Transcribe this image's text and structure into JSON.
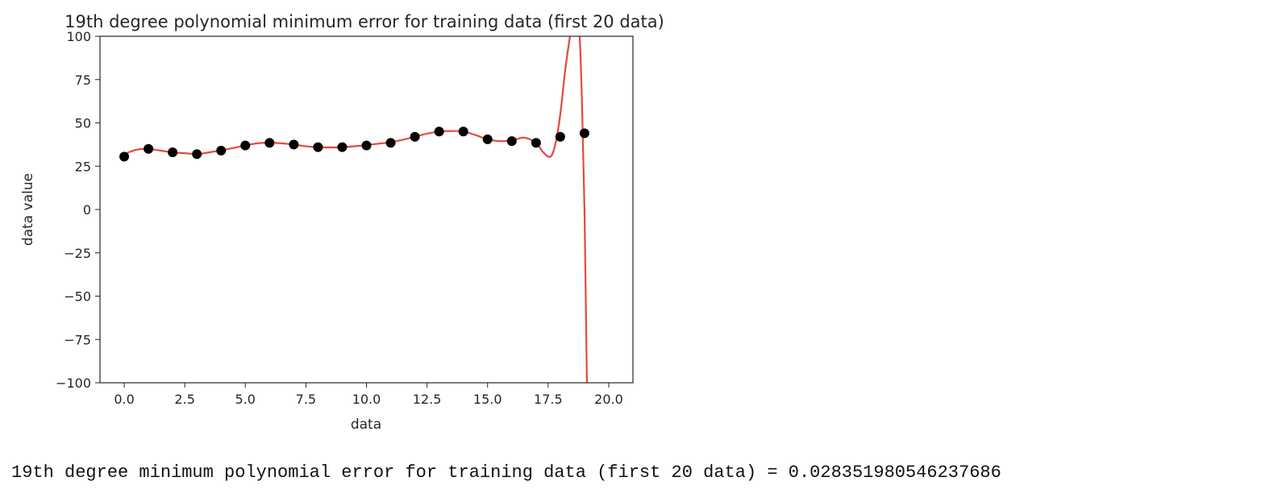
{
  "chart_data": {
    "type": "scatter",
    "title": "19th degree polynomial minimum error for training data (first 20 data)",
    "xlabel": "data",
    "ylabel": "data value",
    "xlim": [
      -1,
      21
    ],
    "ylim": [
      -100,
      100
    ],
    "xticks": [
      0.0,
      2.5,
      5.0,
      7.5,
      10.0,
      12.5,
      15.0,
      17.5,
      20.0
    ],
    "xtick_labels": [
      "0.0",
      "2.5",
      "5.0",
      "7.5",
      "10.0",
      "12.5",
      "15.0",
      "17.5",
      "20.0"
    ],
    "yticks": [
      100,
      75,
      50,
      25,
      0,
      -25,
      -50,
      -75,
      -100
    ],
    "ytick_labels": [
      "100",
      "75",
      "50",
      "25",
      "0",
      "−25",
      "−50",
      "−75",
      "−100"
    ],
    "grid": false,
    "series": [
      {
        "kind": "scatter",
        "color": "#000000",
        "x": [
          0,
          1,
          2,
          3,
          4,
          5,
          6,
          7,
          8,
          9,
          10,
          11,
          12,
          13,
          14,
          15,
          16,
          17,
          18,
          19
        ],
        "y": [
          30.5,
          35,
          33,
          32,
          34,
          37,
          38.5,
          37.5,
          36,
          36,
          37,
          38.5,
          42,
          45,
          45,
          40.5,
          39.5,
          38.5,
          42,
          44
        ]
      },
      {
        "kind": "line",
        "color": "#e8483c",
        "x": [
          0,
          0.5,
          1,
          1.5,
          2,
          2.5,
          3,
          3.5,
          4,
          4.5,
          5,
          5.5,
          6,
          6.5,
          7,
          7.5,
          8,
          8.5,
          9,
          9.5,
          10,
          10.5,
          11,
          11.5,
          12,
          12.5,
          13,
          13.5,
          14,
          14.5,
          15,
          15.5,
          16,
          16.5,
          17,
          17.3,
          17.6,
          17.8,
          18,
          18.2,
          18.4,
          18.55,
          18.7,
          18.8,
          18.9,
          19,
          19.1
        ],
        "y": [
          32,
          34.5,
          35,
          34,
          33,
          32.5,
          32,
          33,
          34.2,
          35.5,
          37,
          38.2,
          38.6,
          38.2,
          37.5,
          36.5,
          36,
          35.8,
          36,
          36.5,
          37.2,
          38,
          38.8,
          40.3,
          42,
          43.8,
          45,
          45.3,
          45,
          43,
          40.5,
          39.5,
          39.8,
          41.5,
          38.5,
          33,
          30.5,
          38,
          55,
          80,
          100,
          115,
          110,
          100,
          60,
          0,
          -100
        ]
      }
    ]
  },
  "output": {
    "text": "19th degree minimum polynomial error for training data (first 20 data) = 0.028351980546237686"
  }
}
